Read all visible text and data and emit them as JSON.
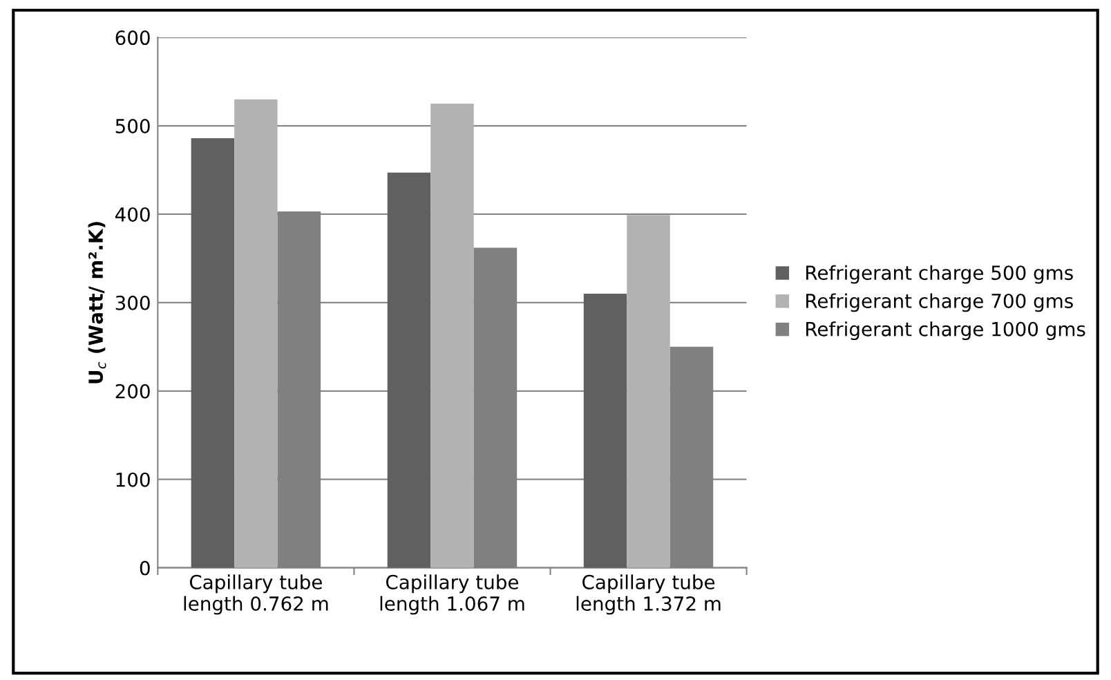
{
  "chart_data": {
    "type": "bar",
    "ylabel": "U$_{c}$ (Watt/ m².K)",
    "categories": [
      "Capillary tube\nlength 0.762 m",
      "Capillary tube\nlength 1.067 m",
      "Capillary tube\nlength 1.372 m"
    ],
    "series": [
      {
        "name": "Refrigerant charge 500 gms",
        "color": "#606060",
        "values": [
          486,
          447,
          310
        ]
      },
      {
        "name": "Refrigerant charge 700 gms",
        "color": "#b2b2b2",
        "values": [
          530,
          525,
          399
        ]
      },
      {
        "name": "Refrigerant charge 1000 gms",
        "color": "#808080",
        "values": [
          403,
          362,
          250
        ]
      }
    ],
    "ylim": [
      0,
      600
    ],
    "yticks": [
      0,
      100,
      200,
      300,
      400,
      500,
      600
    ],
    "grid": "y",
    "legend": "right"
  }
}
